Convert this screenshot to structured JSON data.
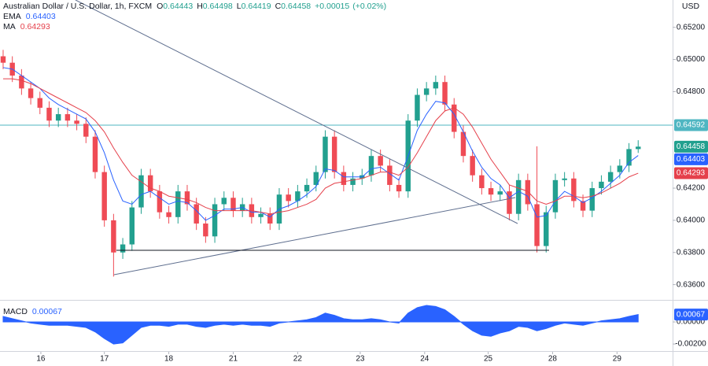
{
  "chart_data": {
    "type": "candlestick",
    "title": "Australian Dollar / U.S. Dollar, 1h, FXCM",
    "currency": "USD",
    "ohlc_labels": [
      "O",
      "H",
      "L",
      "C"
    ],
    "change": "+0.00015",
    "change_pct": "(+0.02%)",
    "up_color": "#22a08f",
    "down_color": "#ef4b55",
    "open": [
      0.6502,
      0.6498,
      0.649,
      0.6482,
      0.6476,
      0.647,
      0.6462,
      0.6466,
      0.6462,
      0.646,
      0.6452,
      0.643,
      0.64,
      0.638,
      0.6385,
      0.6408,
      0.6428,
      0.6418,
      0.6405,
      0.6402,
      0.6418,
      0.641,
      0.6398,
      0.639,
      0.641,
      0.6414,
      0.6406,
      0.641,
      0.6402,
      0.6404,
      0.6398,
      0.6416,
      0.6412,
      0.6418,
      0.6422,
      0.643,
      0.6452,
      0.643,
      0.6422,
      0.6426,
      0.6428,
      0.644,
      0.6434,
      0.6422,
      0.6418,
      0.6462,
      0.6478,
      0.6482,
      0.6486,
      0.6472,
      0.6455,
      0.644,
      0.6428,
      0.642,
      0.6416,
      0.6418,
      0.6404,
      0.6425,
      0.641,
      0.6384,
      0.6405,
      0.6425,
      0.6426,
      0.6412,
      0.6406,
      0.642,
      0.6424,
      0.643,
      0.6434,
      0.64443
    ],
    "high": [
      0.6506,
      0.6502,
      0.6494,
      0.6486,
      0.648,
      0.6474,
      0.647,
      0.647,
      0.6466,
      0.6464,
      0.6456,
      0.6434,
      0.6404,
      0.6389,
      0.6412,
      0.6432,
      0.6432,
      0.6422,
      0.6409,
      0.6422,
      0.6422,
      0.6414,
      0.6402,
      0.6414,
      0.6418,
      0.6418,
      0.6414,
      0.6414,
      0.6408,
      0.6408,
      0.642,
      0.642,
      0.6422,
      0.6426,
      0.6434,
      0.6456,
      0.6456,
      0.6434,
      0.643,
      0.6432,
      0.6444,
      0.6444,
      0.6438,
      0.6426,
      0.6466,
      0.6482,
      0.6486,
      0.649,
      0.649,
      0.6476,
      0.6459,
      0.6444,
      0.6432,
      0.6424,
      0.6422,
      0.6422,
      0.6429,
      0.6429,
      0.6446,
      0.6409,
      0.6429,
      0.643,
      0.643,
      0.6416,
      0.6424,
      0.6428,
      0.6434,
      0.6438,
      0.6448,
      0.64498
    ],
    "low": [
      0.6494,
      0.6486,
      0.6478,
      0.6472,
      0.6466,
      0.6458,
      0.6458,
      0.6458,
      0.6456,
      0.6448,
      0.6426,
      0.6396,
      0.6365,
      0.6376,
      0.6381,
      0.6404,
      0.6414,
      0.6401,
      0.6398,
      0.6398,
      0.6406,
      0.6394,
      0.6386,
      0.6386,
      0.6406,
      0.6402,
      0.6402,
      0.6398,
      0.6398,
      0.6394,
      0.6394,
      0.6408,
      0.6408,
      0.6414,
      0.6418,
      0.6426,
      0.6426,
      0.6418,
      0.6418,
      0.6422,
      0.6424,
      0.643,
      0.6418,
      0.6414,
      0.6414,
      0.6458,
      0.6474,
      0.6478,
      0.6468,
      0.6451,
      0.6436,
      0.6424,
      0.6416,
      0.6412,
      0.6412,
      0.64,
      0.64,
      0.6406,
      0.638,
      0.638,
      0.6401,
      0.6421,
      0.6408,
      0.6402,
      0.6402,
      0.6416,
      0.642,
      0.6426,
      0.643,
      0.64419
    ],
    "close": [
      0.6498,
      0.649,
      0.6482,
      0.6476,
      0.647,
      0.6462,
      0.6466,
      0.6462,
      0.646,
      0.6452,
      0.643,
      0.64,
      0.638,
      0.6385,
      0.6408,
      0.6428,
      0.6418,
      0.6405,
      0.6402,
      0.6418,
      0.641,
      0.6398,
      0.639,
      0.641,
      0.6414,
      0.6406,
      0.641,
      0.6402,
      0.6404,
      0.6398,
      0.6416,
      0.6412,
      0.6418,
      0.6422,
      0.643,
      0.6452,
      0.643,
      0.6422,
      0.6426,
      0.6428,
      0.644,
      0.6434,
      0.6422,
      0.6418,
      0.6462,
      0.6478,
      0.6482,
      0.6486,
      0.6472,
      0.6455,
      0.644,
      0.6428,
      0.642,
      0.6416,
      0.6418,
      0.6404,
      0.6425,
      0.641,
      0.6384,
      0.6405,
      0.6425,
      0.6426,
      0.6412,
      0.6406,
      0.642,
      0.6424,
      0.643,
      0.6434,
      0.64443,
      0.64458
    ],
    "overlays": [
      {
        "name": "EMA",
        "color": "#2962ff",
        "values": [
          0.6495,
          0.6494,
          0.649,
          0.6486,
          0.6482,
          0.6476,
          0.6472,
          0.6469,
          0.6466,
          0.6463,
          0.6455,
          0.6442,
          0.6425,
          0.6412,
          0.641,
          0.6416,
          0.6418,
          0.6414,
          0.641,
          0.6412,
          0.6411,
          0.6406,
          0.64,
          0.6403,
          0.6407,
          0.6407,
          0.6408,
          0.6405,
          0.6405,
          0.6402,
          0.6407,
          0.6409,
          0.6412,
          0.6416,
          0.6421,
          0.6432,
          0.6431,
          0.6427,
          0.6427,
          0.6427,
          0.6432,
          0.6433,
          0.6429,
          0.6425,
          0.644,
          0.6456,
          0.6466,
          0.6474,
          0.6473,
          0.6466,
          0.6455,
          0.6443,
          0.6433,
          0.6426,
          0.6422,
          0.6414,
          0.6418,
          0.6415,
          0.6402,
          0.6403,
          0.6412,
          0.6418,
          0.6415,
          0.6411,
          0.6414,
          0.6418,
          0.6423,
          0.6428,
          0.6436,
          0.64403
        ]
      },
      {
        "name": "MA",
        "color": "#e5404b",
        "values": [
          0.6488,
          0.6488,
          0.6487,
          0.6485,
          0.6482,
          0.6479,
          0.6476,
          0.6473,
          0.647,
          0.6467,
          0.6462,
          0.6455,
          0.6445,
          0.6436,
          0.6428,
          0.6424,
          0.642,
          0.6418,
          0.6415,
          0.6414,
          0.6413,
          0.6411,
          0.6408,
          0.6406,
          0.6406,
          0.6406,
          0.6406,
          0.6406,
          0.6405,
          0.6404,
          0.6405,
          0.6406,
          0.6408,
          0.641,
          0.6413,
          0.642,
          0.6423,
          0.6424,
          0.6425,
          0.6426,
          0.6428,
          0.643,
          0.643,
          0.6428,
          0.6433,
          0.6442,
          0.6452,
          0.6462,
          0.6468,
          0.647,
          0.6466,
          0.6458,
          0.6448,
          0.6438,
          0.643,
          0.6422,
          0.642,
          0.6418,
          0.6412,
          0.641,
          0.6412,
          0.6415,
          0.6415,
          0.6414,
          0.6415,
          0.6417,
          0.642,
          0.6423,
          0.6427,
          0.64293
        ]
      }
    ],
    "hline": {
      "value": 0.64592,
      "color": "#4fb6c2"
    },
    "xlim": [
      -0.34,
      72.74
    ],
    "xticks": [
      {
        "value": 4.1,
        "label": "16"
      },
      {
        "value": 11,
        "label": "17"
      },
      {
        "value": 18,
        "label": "18"
      },
      {
        "value": 25,
        "label": "21"
      },
      {
        "value": 32,
        "label": "22"
      },
      {
        "value": 38.8,
        "label": "23"
      },
      {
        "value": 45.8,
        "label": "24"
      },
      {
        "value": 52.7,
        "label": "25"
      },
      {
        "value": 59.7,
        "label": "28"
      },
      {
        "value": 66.7,
        "label": "29"
      }
    ],
    "ylim": [
      0.6351,
      0.6537
    ],
    "yticks": [
      {
        "value": 0.636,
        "label": "0.63600"
      },
      {
        "value": 0.638,
        "label": "0.63800"
      },
      {
        "value": 0.64,
        "label": "0.64000"
      },
      {
        "value": 0.642,
        "label": "0.64200"
      },
      {
        "value": 0.648,
        "label": "0.64800"
      },
      {
        "value": 0.65,
        "label": "0.65000"
      },
      {
        "value": 0.652,
        "label": "0.65200"
      }
    ],
    "macd": {
      "name": "MACD",
      "color": "#2962ff",
      "ylim": [
        -0.00271,
        0.00193
      ],
      "yticks": [
        {
          "value": 0,
          "label": "0.00000"
        },
        {
          "value": -0.002,
          "label": "-0.00200"
        }
      ],
      "values": [
        0.0005,
        0.0003,
        0.0001,
        -0.0001,
        -0.0002,
        -0.0003,
        -0.0003,
        -0.0003,
        -0.0004,
        -0.0005,
        -0.0009,
        -0.0015,
        -0.002,
        -0.0019,
        -0.0012,
        -0.0005,
        -0.0003,
        -0.0003,
        -0.0004,
        -0.0002,
        -0.0002,
        -0.0004,
        -0.0005,
        -0.0003,
        -0.0002,
        -0.0003,
        -0.0002,
        -0.0003,
        -0.0003,
        -0.0004,
        -0.0001,
        0,
        0.0001,
        0.0002,
        0.0004,
        0.0008,
        0.0006,
        0.0003,
        0.0002,
        0.0002,
        0.0003,
        0.0002,
        0,
        -0.0001,
        0.0008,
        0.0013,
        0.0015,
        0.0014,
        0.0011,
        0.0005,
        -0.0002,
        -0.0008,
        -0.0012,
        -0.0013,
        -0.001,
        -0.0008,
        -0.0004,
        -0.0005,
        -0.0008,
        -0.0006,
        -0.0003,
        -0.0001,
        -0.0002,
        -0.0003,
        -0.0001,
        0.0001,
        0.0002,
        0.0003,
        0.0005,
        0.00067
      ]
    }
  }
}
